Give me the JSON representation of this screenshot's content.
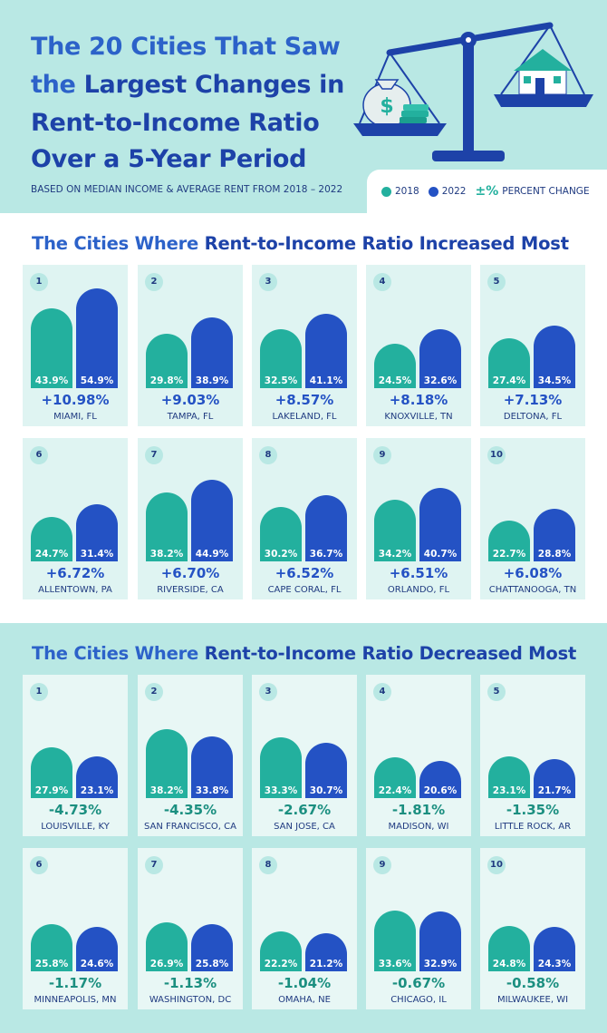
{
  "header": {
    "title_lines": [
      [
        "The 20 Cities That Saw",
        ""
      ],
      [
        "the ",
        "Largest Changes in"
      ],
      [
        "Rent-to-Income Ratio",
        ""
      ],
      [
        "Over a 5-Year Period",
        ""
      ]
    ],
    "subtitle": "BASED ON MEDIAN INCOME & AVERAGE RENT FROM 2018 – 2022"
  },
  "legend": {
    "label_2018": "2018",
    "label_2022": "2022",
    "percent_symbol": "±%",
    "percent_label": "PERCENT CHANGE"
  },
  "colors": {
    "y2018": "#23b09e",
    "y2022": "#2452c4"
  },
  "illustration": {
    "icon_left": "money-bag-icon",
    "icon_right": "house-icon",
    "balance": "balance-scale-icon",
    "money_symbol": "$"
  },
  "chart_data": [
    {
      "type": "bar",
      "title_plain": "The Cities Where ",
      "title_highlight": "Rent-to-Income Ratio Increased Most",
      "series_names": [
        "2018",
        "2022"
      ],
      "categories": [
        {
          "rank": "1",
          "city": "MIAMI, FL",
          "v2018": 43.9,
          "v2022": 54.9,
          "change": "+10.98%"
        },
        {
          "rank": "2",
          "city": "TAMPA, FL",
          "v2018": 29.8,
          "v2022": 38.9,
          "change": "+9.03%"
        },
        {
          "rank": "3",
          "city": "LAKELAND, FL",
          "v2018": 32.5,
          "v2022": 41.1,
          "change": "+8.57%"
        },
        {
          "rank": "4",
          "city": "KNOXVILLE, TN",
          "v2018": 24.5,
          "v2022": 32.6,
          "change": "+8.18%"
        },
        {
          "rank": "5",
          "city": "DELTONA, FL",
          "v2018": 27.4,
          "v2022": 34.5,
          "change": "+7.13%"
        },
        {
          "rank": "6",
          "city": "ALLENTOWN, PA",
          "v2018": 24.7,
          "v2022": 31.4,
          "change": "+6.72%"
        },
        {
          "rank": "7",
          "city": "RIVERSIDE, CA",
          "v2018": 38.2,
          "v2022": 44.9,
          "change": "+6.70%"
        },
        {
          "rank": "8",
          "city": "CAPE CORAL, FL",
          "v2018": 30.2,
          "v2022": 36.7,
          "change": "+6.52%"
        },
        {
          "rank": "9",
          "city": "ORLANDO, FL",
          "v2018": 34.2,
          "v2022": 40.7,
          "change": "+6.51%"
        },
        {
          "rank": "10",
          "city": "CHATTANOOGA, TN",
          "v2018": 22.7,
          "v2022": 28.8,
          "change": "+6.08%"
        }
      ]
    },
    {
      "type": "bar",
      "title_plain": "The Cities Where ",
      "title_highlight": "Rent-to-Income Ratio Decreased Most",
      "series_names": [
        "2018",
        "2022"
      ],
      "categories": [
        {
          "rank": "1",
          "city": "LOUISVILLE, KY",
          "v2018": 27.9,
          "v2022": 23.1,
          "change": "-4.73%"
        },
        {
          "rank": "2",
          "city": "SAN FRANCISCO, CA",
          "v2018": 38.2,
          "v2022": 33.8,
          "change": "-4.35%"
        },
        {
          "rank": "3",
          "city": "SAN JOSE, CA",
          "v2018": 33.3,
          "v2022": 30.7,
          "change": "-2.67%"
        },
        {
          "rank": "4",
          "city": "MADISON, WI",
          "v2018": 22.4,
          "v2022": 20.6,
          "change": "-1.81%"
        },
        {
          "rank": "5",
          "city": "LITTLE ROCK, AR",
          "v2018": 23.1,
          "v2022": 21.7,
          "change": "-1.35%"
        },
        {
          "rank": "6",
          "city": "MINNEAPOLIS, MN",
          "v2018": 25.8,
          "v2022": 24.6,
          "change": "-1.17%"
        },
        {
          "rank": "7",
          "city": "WASHINGTON, DC",
          "v2018": 26.9,
          "v2022": 25.8,
          "change": "-1.13%"
        },
        {
          "rank": "8",
          "city": "OMAHA, NE",
          "v2018": 22.2,
          "v2022": 21.2,
          "change": "-1.04%"
        },
        {
          "rank": "9",
          "city": "CHICAGO, IL",
          "v2018": 33.6,
          "v2022": 32.9,
          "change": "-0.67%"
        },
        {
          "rank": "10",
          "city": "MILWAUKEE, WI",
          "v2018": 24.8,
          "v2022": 24.3,
          "change": "-0.58%"
        }
      ]
    }
  ]
}
